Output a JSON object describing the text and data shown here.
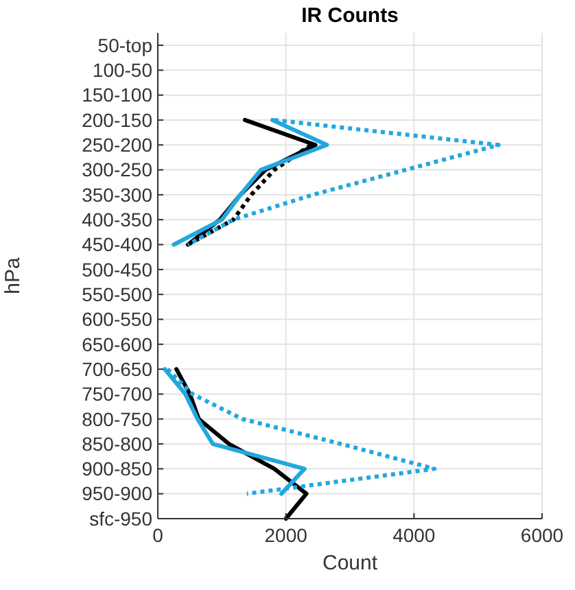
{
  "chart_data": {
    "type": "line",
    "orientation": "horizontal",
    "title": "IR Counts",
    "xlabel": "Count",
    "ylabel": "hPa",
    "categories": [
      "50-top",
      "100-50",
      "150-100",
      "200-150",
      "250-200",
      "300-250",
      "350-300",
      "400-350",
      "450-400",
      "500-450",
      "550-500",
      "600-550",
      "650-600",
      "700-650",
      "750-700",
      "800-750",
      "850-800",
      "900-850",
      "950-900",
      "sfc-950"
    ],
    "xlim": [
      0,
      6000
    ],
    "xticks": [
      0,
      2000,
      4000,
      6000
    ],
    "grid": true,
    "marker": "none",
    "series": [
      {
        "color": "#000000",
        "line_style": "solid",
        "values": [
          null,
          null,
          null,
          1360,
          2460,
          1680,
          1290,
          970,
          470,
          null,
          null,
          null,
          null,
          290,
          500,
          640,
          1110,
          1820,
          2320,
          2000
        ]
      },
      {
        "color": "#000000",
        "line_style": "dotted",
        "values": [
          null,
          null,
          null,
          null,
          2390,
          1820,
          1460,
          1180,
          470,
          null,
          null,
          null,
          null,
          null,
          null,
          null,
          null,
          null,
          null,
          null
        ]
      },
      {
        "color": "#22a7df",
        "line_style": "solid",
        "values": [
          null,
          null,
          null,
          1790,
          2640,
          1610,
          1290,
          1000,
          250,
          null,
          null,
          null,
          null,
          110,
          430,
          620,
          860,
          2290,
          1930,
          null
        ]
      },
      {
        "color": "#22a7df",
        "line_style": "dotted",
        "values": [
          null,
          null,
          null,
          1820,
          5320,
          3870,
          2420,
          1180,
          470,
          null,
          null,
          null,
          null,
          150,
          540,
          1320,
          2860,
          4320,
          1390,
          null
        ]
      }
    ]
  }
}
